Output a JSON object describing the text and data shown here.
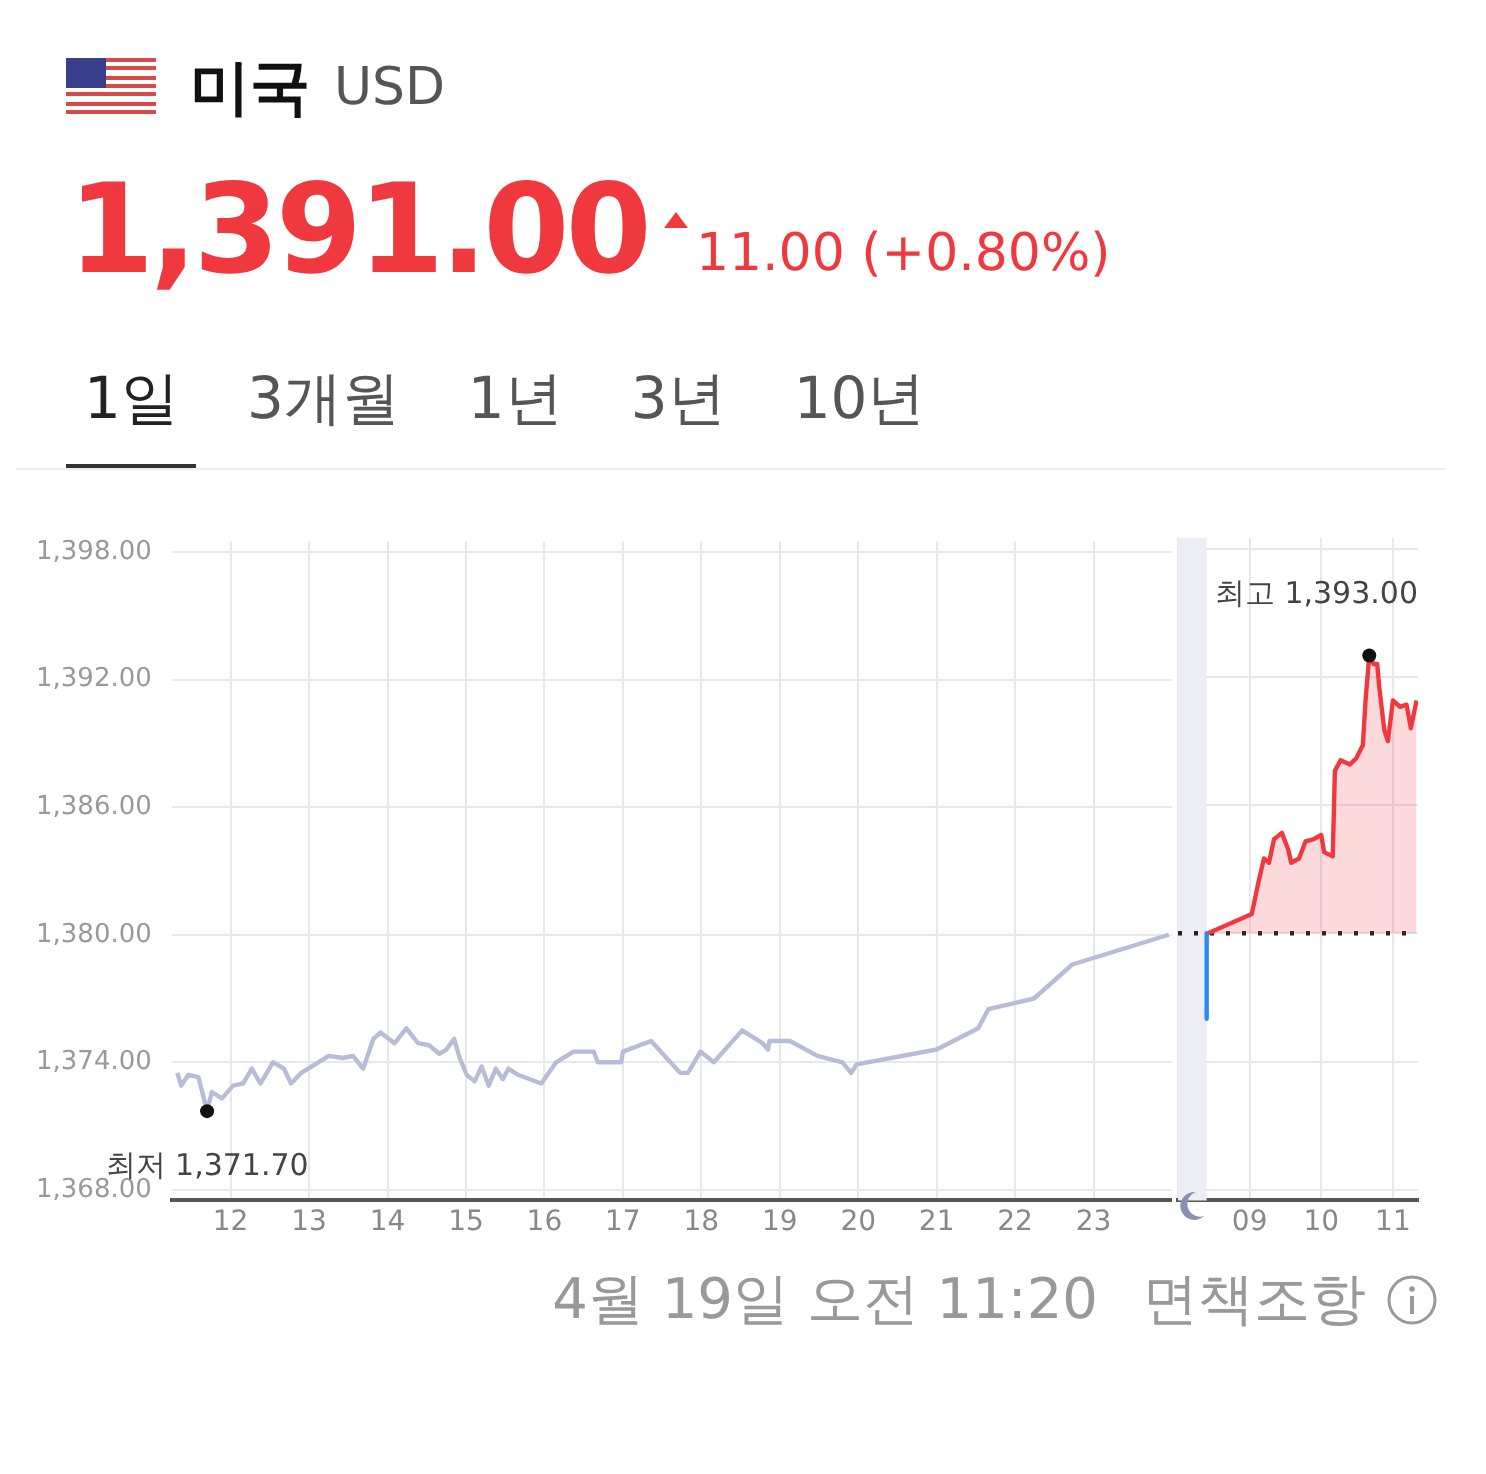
{
  "chart_data": [
    {
      "type": "line",
      "title": "미국",
      "subtitle": "USD",
      "annotations": [
        "1,391.00",
        "11.00 (+0.80%)",
        "1일",
        "3개월",
        "1년",
        "3년",
        "10년",
        "4월 19일 오전 11:20",
        "면책조항",
        {
          "text": "최저 1,371.70",
          "x": 11.7,
          "y": 1371.7
        }
      ],
      "series": [
        {
          "color": "#b8bcd6",
          "x": [
            11.32,
            11.37,
            11.46,
            11.59,
            11.7,
            11.76,
            11.89,
            12.03,
            12.16,
            12.27,
            12.38,
            12.54,
            12.68,
            12.77,
            12.9,
            13.12,
            13.25,
            13.43,
            13.56,
            13.69,
            13.82,
            13.91,
            14.09,
            14.24,
            14.39,
            14.53,
            14.66,
            14.75,
            14.85,
            14.92,
            15.01,
            15.11,
            15.2,
            15.29,
            15.38,
            15.47,
            15.54,
            15.67,
            15.96,
            16.15,
            16.37,
            16.63,
            16.68,
            16.98,
            17.0,
            17.36,
            17.73,
            17.83,
            17.99,
            18.16,
            18.52,
            18.78,
            18.85,
            18.87,
            19.13,
            19.48,
            19.8,
            19.91,
            19.98,
            21.0,
            21.53,
            21.66,
            22.24,
            22.73,
            23.08,
            23.96
          ],
          "values": [
            1373.5,
            1372.9,
            1373.4,
            1373.3,
            1371.7,
            1372.6,
            1372.3,
            1372.9,
            1373.0,
            1373.7,
            1373.0,
            1374.0,
            1373.7,
            1373.0,
            1373.5,
            1374.0,
            1374.3,
            1374.2,
            1374.3,
            1373.7,
            1375.1,
            1375.4,
            1374.9,
            1375.6,
            1374.9,
            1374.8,
            1374.4,
            1374.6,
            1375.1,
            1374.2,
            1373.4,
            1373.1,
            1373.8,
            1372.9,
            1373.7,
            1373.2,
            1373.7,
            1373.4,
            1373.0,
            1374.0,
            1374.5,
            1374.5,
            1374.0,
            1374.0,
            1374.5,
            1375.0,
            1373.5,
            1373.5,
            1374.5,
            1374.0,
            1375.5,
            1374.9,
            1374.6,
            1375.0,
            1375.0,
            1374.3,
            1374.0,
            1373.5,
            1373.9,
            1374.6,
            1375.6,
            1376.5,
            1377.0,
            1378.6,
            1379.0,
            1380.0
          ]
        }
      ],
      "xlim": [
        11.25,
        24.0
      ],
      "xticks": [
        12,
        13,
        14,
        15,
        16,
        17,
        18,
        19,
        20,
        21,
        22,
        23
      ],
      "ylim": [
        1367.5,
        1398.5
      ],
      "yticks": [
        {
          "value": 1368,
          "label": "1,368.00"
        },
        {
          "value": 1374,
          "label": "1,374.00"
        },
        {
          "value": 1380,
          "label": "1,380.00"
        },
        {
          "value": 1386,
          "label": "1,386.00"
        },
        {
          "value": 1392,
          "label": "1,392.00"
        },
        {
          "value": 1398,
          "label": "1,398.00"
        }
      ],
      "grid": true,
      "legend": false,
      "marker": "none"
    },
    {
      "type": "line",
      "annotations": [
        {
          "text": "최고 1,393.00",
          "x": 10.67,
          "y": 1393.0
        }
      ],
      "series": [
        {
          "type": "area",
          "color": "#f0393f",
          "x": [
            8.42,
            9.03,
            9.13,
            9.2,
            9.27,
            9.34,
            9.45,
            9.54,
            9.58,
            9.69,
            9.78,
            9.89,
            10.0,
            10.04,
            10.16,
            10.19,
            10.27,
            10.4,
            10.49,
            10.58,
            10.62,
            10.67,
            10.73,
            10.78,
            10.81,
            10.88,
            10.93,
            11.0,
            11.1,
            11.19,
            11.25,
            11.33
          ],
          "values": [
            1380.0,
            1380.9,
            1382.5,
            1383.5,
            1383.3,
            1384.4,
            1384.7,
            1383.9,
            1383.3,
            1383.5,
            1384.3,
            1384.4,
            1384.6,
            1383.8,
            1383.6,
            1387.6,
            1388.1,
            1387.9,
            1388.2,
            1388.8,
            1391.0,
            1393.0,
            1392.6,
            1392.6,
            1391.5,
            1389.5,
            1389.0,
            1390.9,
            1390.6,
            1390.7,
            1389.6,
            1390.9
          ]
        },
        {
          "color": "#2a8af0",
          "x": [
            8.4,
            8.4
          ],
          "values": [
            1380.0,
            1376.0
          ]
        },
        {
          "color": "#222222",
          "line_style": "dotted",
          "x": [
            8.0,
            11.35
          ],
          "values": [
            1380.0,
            1380.0
          ]
        }
      ],
      "bands": [
        {
          "axis": "x",
          "from": 8.0,
          "to": 8.4,
          "color": "#eceef4"
        }
      ],
      "xlim": [
        8.0,
        11.35
      ],
      "xticks": [
        {
          "value": 8,
          "label": null
        },
        {
          "value": 9,
          "label": "09"
        },
        {
          "value": 10,
          "label": "10"
        },
        {
          "value": 11,
          "label": "11"
        }
      ],
      "ylim": [
        1367.5,
        1398.5
      ],
      "yticks": [
        1368,
        1374,
        1380,
        1386,
        1392,
        1398
      ],
      "tick_labels": "x",
      "grid": true,
      "legend": false,
      "marker": "none"
    }
  ]
}
